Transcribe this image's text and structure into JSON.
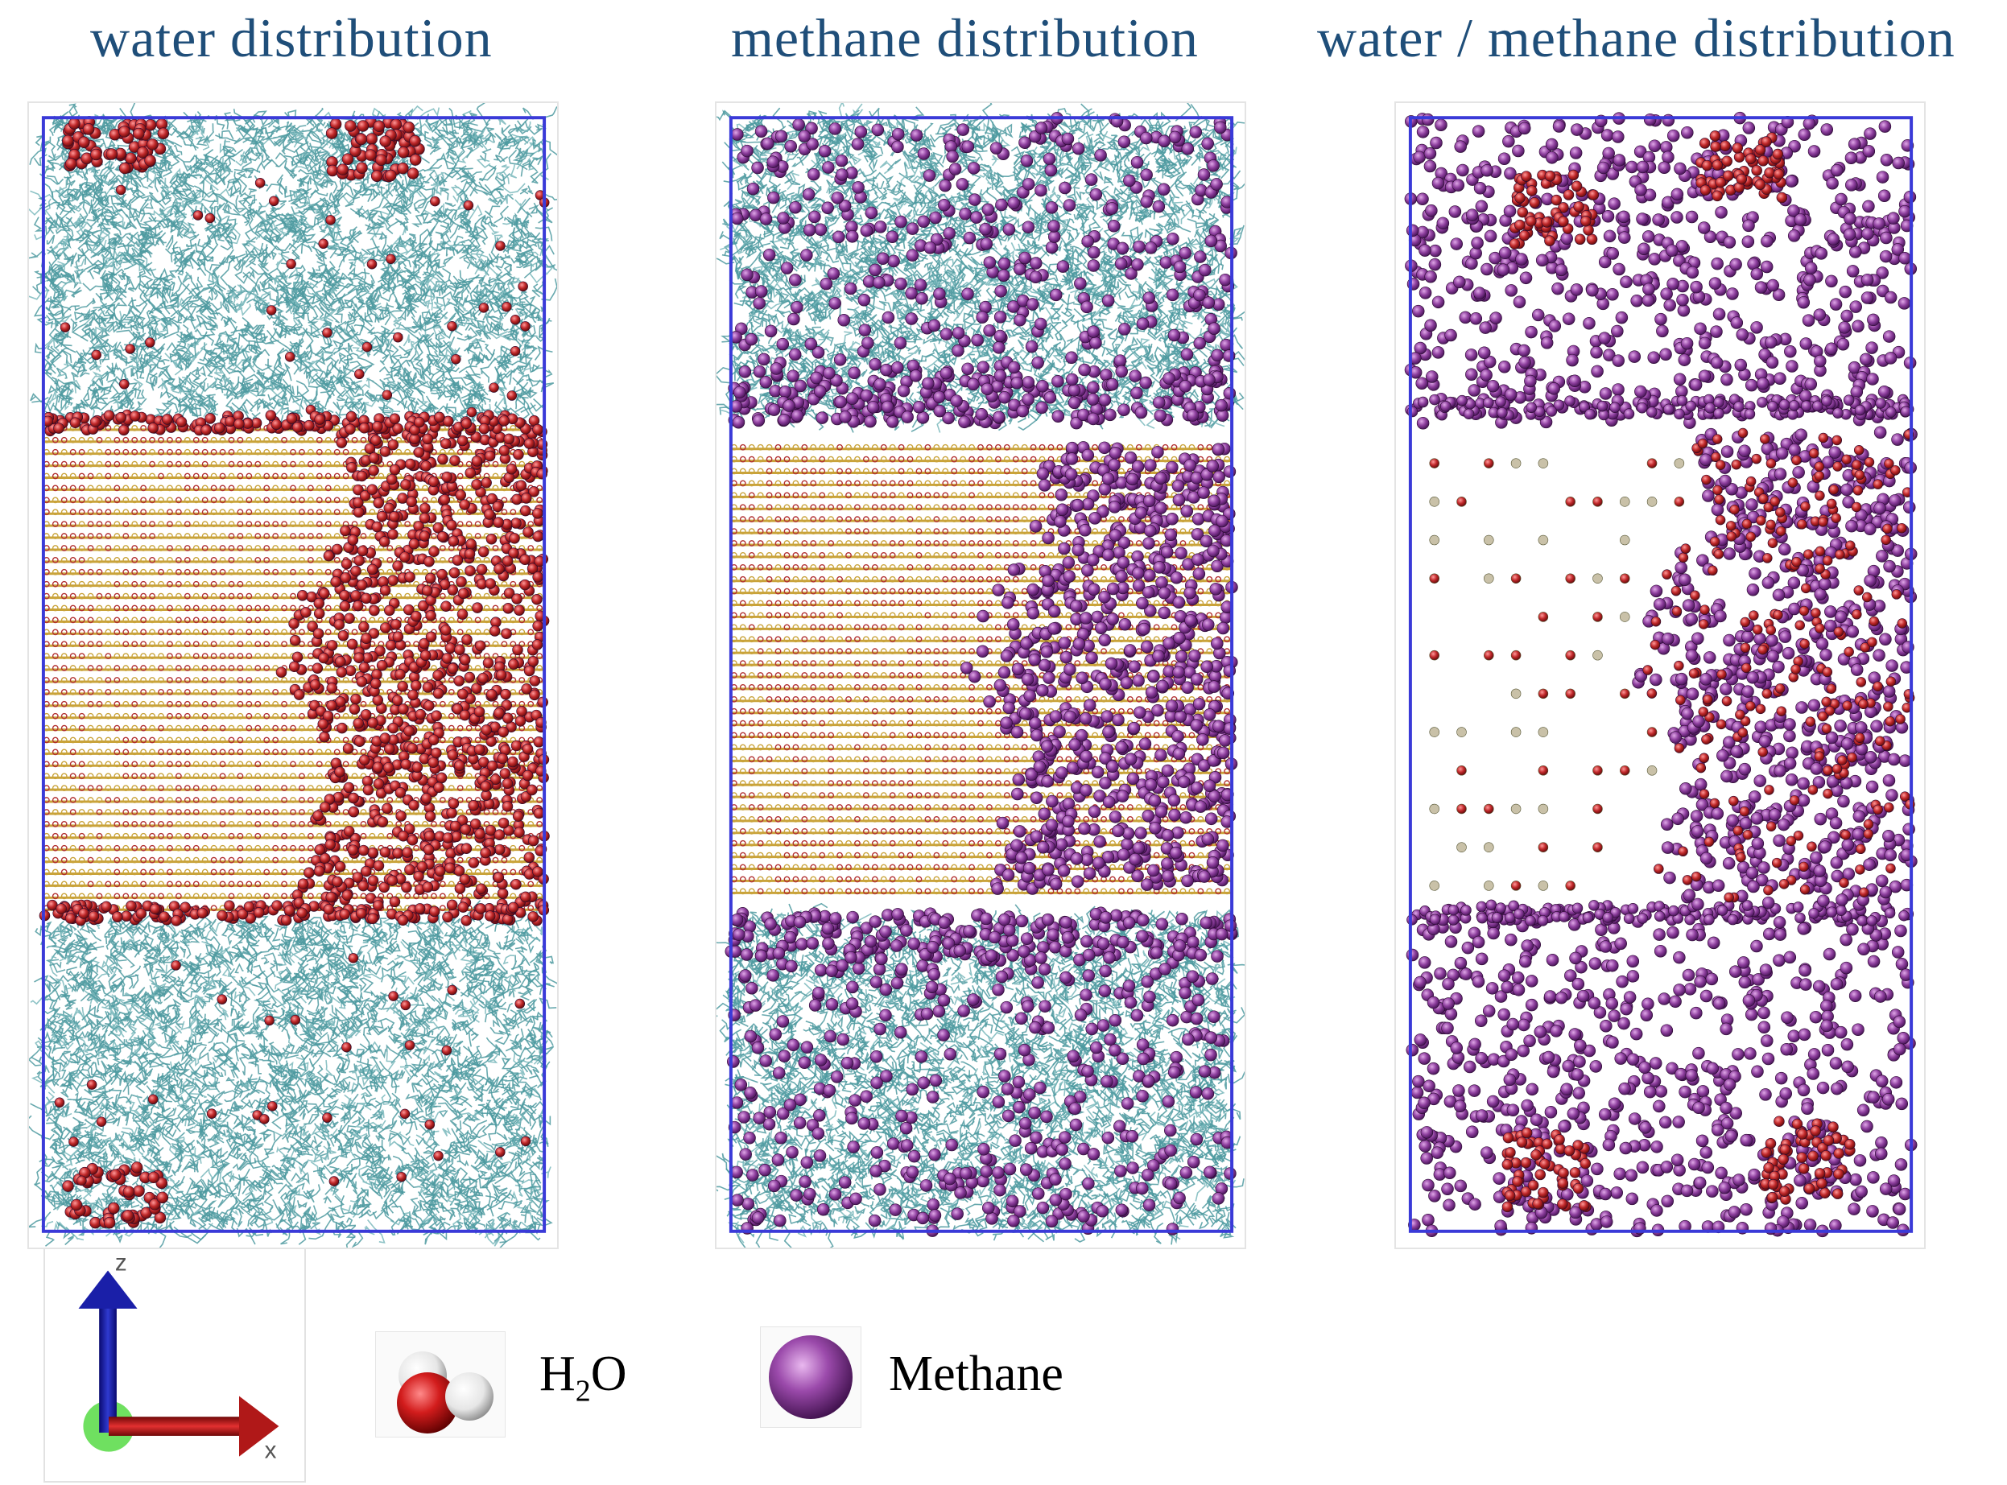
{
  "titles": {
    "water": "water distribution",
    "methane": "methane distribution",
    "combined": "water / methane distribution"
  },
  "axes": {
    "z_label": "z",
    "x_label": "x"
  },
  "legend": {
    "water_main": "H",
    "water_sub": "2",
    "water_tail": "O",
    "methane": "Methane"
  },
  "colors": {
    "box_border": "#3a3ad8",
    "water_red": "#c0282a",
    "water_white": "#f2f2f2",
    "methane_purple": "#8e3f9e",
    "polymer_teal": "#4e9aa0",
    "crystal_gold": "#c9a33a",
    "title_blue": "#1f4e79"
  },
  "icons": {
    "water_molecule": "water-molecule-icon",
    "methane_sphere": "methane-sphere-icon",
    "axis_triad": "axis-triad-icon"
  }
}
